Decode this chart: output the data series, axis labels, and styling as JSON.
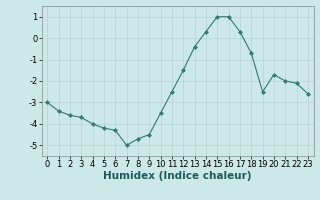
{
  "x": [
    0,
    1,
    2,
    3,
    4,
    5,
    6,
    7,
    8,
    9,
    10,
    11,
    12,
    13,
    14,
    15,
    16,
    17,
    18,
    19,
    20,
    21,
    22,
    23
  ],
  "y": [
    -3.0,
    -3.4,
    -3.6,
    -3.7,
    -4.0,
    -4.2,
    -4.3,
    -5.0,
    -4.7,
    -4.5,
    -3.5,
    -2.5,
    -1.5,
    -0.4,
    0.3,
    1.0,
    1.0,
    0.3,
    -0.7,
    -2.5,
    -1.7,
    -2.0,
    -2.1,
    -2.6
  ],
  "line_color": "#2e7d6e",
  "marker": "D",
  "marker_size": 2,
  "xlabel": "Humidex (Indice chaleur)",
  "ylim": [
    -5.5,
    1.5
  ],
  "xlim": [
    -0.5,
    23.5
  ],
  "yticks": [
    -5,
    -4,
    -3,
    -2,
    -1,
    0,
    1
  ],
  "xticks": [
    0,
    1,
    2,
    3,
    4,
    5,
    6,
    7,
    8,
    9,
    10,
    11,
    12,
    13,
    14,
    15,
    16,
    17,
    18,
    19,
    20,
    21,
    22,
    23
  ],
  "bg_color": "#cce8e8",
  "grid_color": "#b8d0d0",
  "tick_fontsize": 6,
  "xlabel_fontsize": 7.5
}
